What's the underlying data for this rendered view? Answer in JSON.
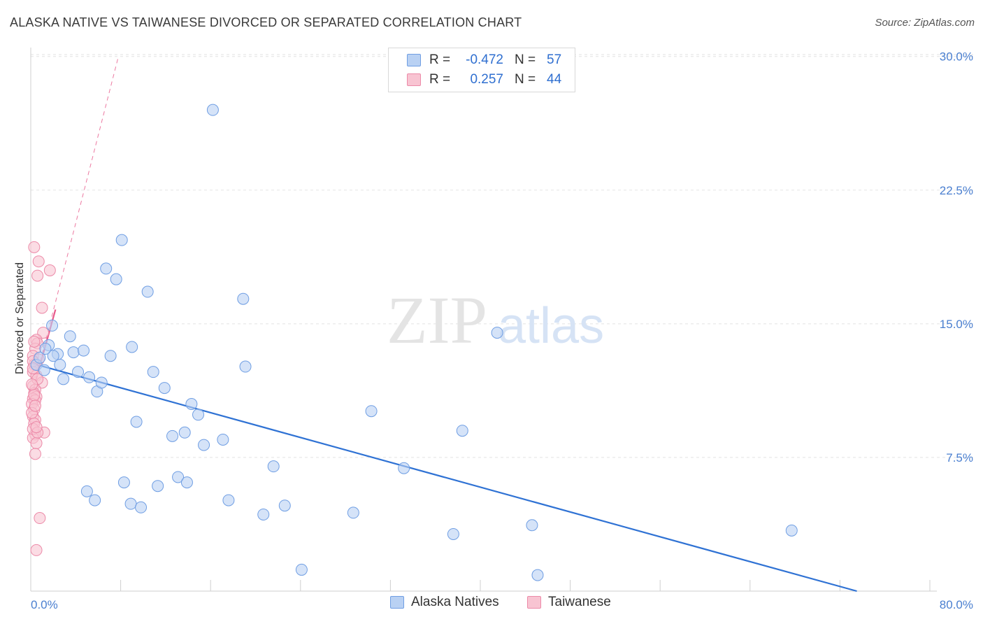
{
  "title": "ALASKA NATIVE VS TAIWANESE DIVORCED OR SEPARATED CORRELATION CHART",
  "source": "Source: ZipAtlas.com",
  "watermark": {
    "zip": "ZIP",
    "atlas": "atlas"
  },
  "legend": {
    "rows": [
      {
        "r_label": "R =",
        "r_value": "-0.472",
        "n_label": "N =",
        "n_value": "57"
      },
      {
        "r_label": "R =",
        "r_value": "0.257",
        "n_label": "N =",
        "n_value": "44"
      }
    ]
  },
  "bottom_legend": [
    "Alaska Natives",
    "Taiwanese"
  ],
  "colors": {
    "blue_fill": "#b9d1f3",
    "blue_stroke": "#6f9ee3",
    "blue_line": "#2f72d4",
    "pink_fill": "#f8c4d2",
    "pink_stroke": "#ec8aa8",
    "pink_line": "#e8588a",
    "tick": "#4a7fd0",
    "grid": "#e3e3e3"
  },
  "chart_data": {
    "type": "scatter",
    "title": "ALASKA NATIVE VS TAIWANESE DIVORCED OR SEPARATED CORRELATION CHART",
    "xlabel": "",
    "ylabel": "Divorced or Separated",
    "xlim": [
      0,
      80
    ],
    "ylim": [
      0,
      30.5
    ],
    "x_tick_labels": [
      "0.0%",
      "80.0%"
    ],
    "y_ticks": [
      7.5,
      15.0,
      22.5,
      30.0
    ],
    "y_tick_labels": [
      "7.5%",
      "15.0%",
      "22.5%",
      "30.0%"
    ],
    "grid": true,
    "series": [
      {
        "name": "Alaska Natives",
        "r": -0.472,
        "n": 57,
        "trend": {
          "x": [
            0,
            73.5
          ],
          "y": [
            12.8,
            0
          ]
        },
        "points": [
          [
            0.5,
            12.7
          ],
          [
            0.8,
            13.1
          ],
          [
            1.2,
            12.4
          ],
          [
            1.6,
            13.8
          ],
          [
            1.9,
            14.9
          ],
          [
            2.4,
            13.3
          ],
          [
            2.6,
            12.7
          ],
          [
            2.9,
            11.9
          ],
          [
            3.5,
            14.3
          ],
          [
            3.8,
            13.4
          ],
          [
            4.2,
            12.3
          ],
          [
            4.7,
            13.5
          ],
          [
            5.2,
            12.0
          ],
          [
            5.9,
            11.2
          ],
          [
            6.3,
            11.7
          ],
          [
            6.7,
            18.1
          ],
          [
            7.1,
            13.2
          ],
          [
            7.6,
            17.5
          ],
          [
            8.1,
            19.7
          ],
          [
            9.0,
            13.7
          ],
          [
            9.4,
            9.5
          ],
          [
            10.4,
            16.8
          ],
          [
            10.9,
            12.3
          ],
          [
            11.3,
            5.9
          ],
          [
            11.9,
            11.4
          ],
          [
            12.6,
            8.7
          ],
          [
            13.1,
            6.4
          ],
          [
            13.7,
            8.9
          ],
          [
            14.3,
            10.5
          ],
          [
            14.9,
            9.9
          ],
          [
            15.4,
            8.2
          ],
          [
            16.2,
            27.0
          ],
          [
            17.1,
            8.5
          ],
          [
            17.6,
            5.1
          ],
          [
            18.9,
            16.4
          ],
          [
            19.1,
            12.6
          ],
          [
            20.7,
            4.3
          ],
          [
            21.6,
            7.0
          ],
          [
            22.6,
            4.8
          ],
          [
            24.1,
            1.2
          ],
          [
            28.7,
            4.4
          ],
          [
            30.3,
            10.1
          ],
          [
            33.2,
            6.9
          ],
          [
            37.6,
            3.2
          ],
          [
            38.4,
            9.0
          ],
          [
            41.5,
            14.5
          ],
          [
            44.6,
            3.7
          ],
          [
            45.1,
            0.9
          ],
          [
            67.7,
            3.4
          ],
          [
            5.0,
            5.6
          ],
          [
            5.7,
            5.1
          ],
          [
            8.3,
            6.1
          ],
          [
            8.9,
            4.9
          ],
          [
            9.8,
            4.7
          ],
          [
            13.9,
            6.1
          ],
          [
            2.0,
            13.2
          ],
          [
            1.3,
            13.6
          ]
        ]
      },
      {
        "name": "Taiwanese",
        "r": 0.257,
        "n": 44,
        "trend": {
          "x": [
            0,
            2.2
          ],
          "y": [
            10.8,
            15.8
          ]
        },
        "trend_extended": {
          "x": [
            0,
            7.8
          ],
          "y": [
            10.8,
            30.0
          ]
        },
        "points": [
          [
            0.3,
            19.3
          ],
          [
            0.7,
            18.5
          ],
          [
            0.6,
            17.7
          ],
          [
            1.7,
            18.0
          ],
          [
            1.0,
            15.9
          ],
          [
            1.1,
            14.5
          ],
          [
            0.5,
            14.1
          ],
          [
            0.6,
            13.9
          ],
          [
            0.4,
            13.6
          ],
          [
            0.2,
            13.2
          ],
          [
            0.7,
            13.0
          ],
          [
            0.3,
            12.7
          ],
          [
            0.2,
            12.3
          ],
          [
            0.5,
            12.1
          ],
          [
            1.0,
            11.7
          ],
          [
            0.2,
            11.5
          ],
          [
            0.4,
            11.3
          ],
          [
            0.3,
            11.1
          ],
          [
            0.5,
            10.9
          ],
          [
            0.2,
            10.8
          ],
          [
            0.4,
            10.7
          ],
          [
            0.1,
            10.5
          ],
          [
            0.3,
            10.2
          ],
          [
            0.2,
            9.8
          ],
          [
            0.4,
            9.6
          ],
          [
            0.3,
            9.4
          ],
          [
            1.2,
            8.9
          ],
          [
            0.4,
            8.8
          ],
          [
            0.2,
            8.6
          ],
          [
            0.5,
            8.3
          ],
          [
            0.4,
            7.7
          ],
          [
            0.8,
            4.1
          ],
          [
            0.5,
            2.3
          ],
          [
            0.2,
            12.9
          ],
          [
            0.6,
            11.9
          ],
          [
            0.3,
            11.0
          ],
          [
            0.1,
            10.0
          ],
          [
            0.2,
            9.1
          ],
          [
            0.6,
            8.9
          ],
          [
            0.3,
            14.0
          ],
          [
            0.2,
            12.5
          ],
          [
            0.4,
            10.4
          ],
          [
            0.1,
            11.6
          ],
          [
            0.5,
            9.2
          ]
        ]
      }
    ]
  }
}
